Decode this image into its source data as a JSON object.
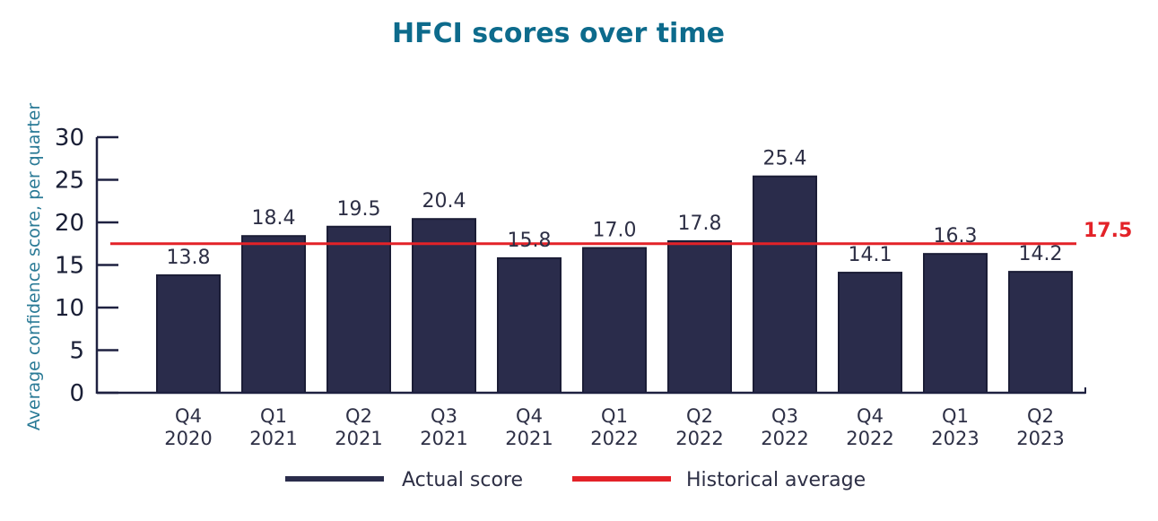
{
  "chart_data": {
    "type": "bar",
    "title": "HFCI scores over time",
    "ylabel": "Average confidence score, per quarter",
    "xlabel": "",
    "ylim": [
      0,
      30
    ],
    "yticks": [
      0,
      5,
      10,
      15,
      20,
      25,
      30
    ],
    "categories": [
      [
        "Q4",
        "2020"
      ],
      [
        "Q1",
        "2021"
      ],
      [
        "Q2",
        "2021"
      ],
      [
        "Q3",
        "2021"
      ],
      [
        "Q4",
        "2021"
      ],
      [
        "Q1",
        "2022"
      ],
      [
        "Q2",
        "2022"
      ],
      [
        "Q3",
        "2022"
      ],
      [
        "Q4",
        "2022"
      ],
      [
        "Q1",
        "2023"
      ],
      [
        "Q2",
        "2023"
      ]
    ],
    "series": [
      {
        "name": "Actual score",
        "color": "#2a2c4b",
        "values": [
          13.8,
          18.4,
          19.5,
          20.4,
          15.8,
          17.0,
          17.8,
          25.4,
          14.1,
          16.3,
          14.2
        ],
        "labels": [
          "13.8",
          "18.4",
          "19.5",
          "20.4",
          "15.8",
          "17.0",
          "17.8",
          "25.4",
          "14.1",
          "16.3",
          "14.2"
        ]
      }
    ],
    "reference_line": {
      "name": "Historical average",
      "value": 17.5,
      "label": "17.5",
      "color": "#e32228"
    },
    "legend": {
      "placement": "bottom",
      "items": [
        {
          "label": "Actual score",
          "color": "#2a2c4b"
        },
        {
          "label": "Historical average",
          "color": "#e32228"
        }
      ]
    },
    "grid": false
  }
}
